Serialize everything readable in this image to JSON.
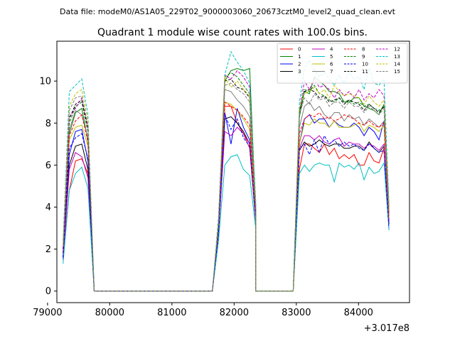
{
  "chart_data": {
    "type": "line",
    "suptitle": "Data file: modeM0/AS1A05_229T02_9000003060_20673cztM0_level2_quad_clean.evt",
    "title": "Quadrant 1 module wise count rates with 100.0s bins.",
    "xlabel": "",
    "ylabel": "",
    "x_offset_label": "+3.017e8",
    "xlim": [
      79150,
      84820
    ],
    "ylim": [
      -0.55,
      11.9
    ],
    "xticks": [
      79000,
      80000,
      81000,
      82000,
      83000,
      84000
    ],
    "yticks": [
      0,
      2,
      4,
      6,
      8,
      10
    ],
    "legend": {
      "placement": "top-right",
      "ncol": 4
    },
    "series": [
      {
        "name": "0",
        "color": "#ff0000",
        "dash": "solid",
        "seg1": [
          1.5,
          4.8,
          6.2,
          6.3,
          5.6
        ],
        "seg2": [
          2.8,
          8.8,
          8.8,
          8.0,
          7.5,
          6.8,
          3.2
        ],
        "seg3": [
          5.8,
          7.0,
          7.0,
          6.8,
          6.6,
          7.0,
          6.5,
          6.8,
          6.3,
          6.5,
          6.3,
          6.5,
          6.0,
          6.0,
          6.6,
          6.2,
          6.1,
          6.8,
          3.4
        ]
      },
      {
        "name": "1",
        "color": "#008000",
        "dash": "solid",
        "seg1": [
          1.8,
          7.5,
          8.5,
          8.7,
          7.2
        ],
        "seg2": [
          3.0,
          10.0,
          10.5,
          10.6,
          10.5,
          10.6,
          3.6
        ],
        "seg3": [
          8.3,
          9.5,
          9.4,
          10.2,
          10.0,
          9.8,
          9.5,
          9.5,
          9.4,
          9.0,
          9.0,
          9.2,
          9.2,
          8.8,
          8.7,
          8.6,
          8.4,
          8.9,
          3.9
        ]
      },
      {
        "name": "2",
        "color": "#0000ff",
        "dash": "solid",
        "seg1": [
          1.6,
          6.5,
          7.6,
          7.7,
          6.2
        ],
        "seg2": [
          2.9,
          8.5,
          7.0,
          8.7,
          7.8,
          7.2,
          3.3
        ],
        "seg3": [
          7.0,
          8.2,
          8.4,
          8.0,
          8.2,
          8.2,
          7.8,
          8.1,
          7.9,
          7.8,
          7.8,
          8.0,
          7.8,
          7.4,
          7.8,
          7.6,
          7.2,
          8.1,
          3.5
        ]
      },
      {
        "name": "3",
        "color": "#000000",
        "dash": "solid",
        "seg1": [
          1.6,
          6.0,
          6.9,
          7.0,
          5.8
        ],
        "seg2": [
          2.8,
          8.2,
          8.3,
          8.0,
          7.6,
          7.0,
          3.3
        ],
        "seg3": [
          6.7,
          7.1,
          6.9,
          7.0,
          7.2,
          7.0,
          6.9,
          7.0,
          7.0,
          6.8,
          6.8,
          6.9,
          6.9,
          6.7,
          7.1,
          6.8,
          6.6,
          6.9,
          3.2
        ]
      },
      {
        "name": "4",
        "color": "#bf00bf",
        "dash": "solid",
        "seg1": [
          1.5,
          5.8,
          6.6,
          6.4,
          5.4
        ],
        "seg2": [
          2.7,
          7.6,
          7.4,
          7.8,
          7.5,
          7.0,
          3.2
        ],
        "seg3": [
          6.8,
          7.4,
          7.4,
          7.2,
          7.4,
          7.1,
          7.0,
          7.2,
          7.3,
          6.9,
          7.1,
          7.0,
          7.0,
          6.8,
          7.0,
          6.9,
          6.7,
          7.0,
          3.3
        ]
      },
      {
        "name": "5",
        "color": "#00bfbf",
        "dash": "solid",
        "seg1": [
          1.3,
          4.8,
          5.6,
          5.9,
          4.9
        ],
        "seg2": [
          2.4,
          6.0,
          6.4,
          6.5,
          5.8,
          5.5,
          2.9
        ],
        "seg3": [
          5.6,
          6.0,
          5.7,
          6.0,
          6.1,
          6.0,
          6.0,
          5.2,
          6.1,
          5.9,
          6.0,
          5.8,
          6.1,
          5.3,
          5.9,
          5.6,
          5.7,
          6.1,
          2.9
        ]
      },
      {
        "name": "6",
        "color": "#bfbf00",
        "dash": "solid",
        "seg1": [
          1.8,
          7.2,
          7.8,
          7.9,
          6.9
        ],
        "seg2": [
          2.9,
          9.0,
          8.9,
          8.6,
          8.2,
          7.7,
          3.4
        ],
        "seg3": [
          7.0,
          8.0,
          7.9,
          8.2,
          8.0,
          8.0,
          7.8,
          8.1,
          7.8,
          7.8,
          7.8,
          7.9,
          8.0,
          7.6,
          7.9,
          7.8,
          7.6,
          7.9,
          3.5
        ]
      },
      {
        "name": "7",
        "color": "#7f7f7f",
        "dash": "solid",
        "seg1": [
          1.9,
          7.7,
          8.6,
          8.4,
          7.3
        ],
        "seg2": [
          3.1,
          9.6,
          9.5,
          9.1,
          8.8,
          8.3,
          3.6
        ],
        "seg3": [
          7.8,
          8.8,
          9.0,
          8.6,
          8.8,
          8.4,
          8.2,
          8.5,
          8.5,
          8.1,
          8.4,
          8.2,
          8.3,
          7.9,
          8.2,
          8.0,
          7.8,
          8.1,
          3.6
        ]
      },
      {
        "name": "8",
        "color": "#ff0000",
        "dash": "dashed",
        "seg1": [
          1.8,
          7.4,
          8.1,
          8.4,
          7.1
        ],
        "seg2": [
          3.0,
          9.0,
          8.8,
          8.6,
          8.3,
          7.9,
          3.5
        ],
        "seg3": [
          7.5,
          8.2,
          8.4,
          8.3,
          8.5,
          8.2,
          8.3,
          8.1,
          8.2,
          8.4,
          8.3,
          8.2,
          8.0,
          7.9,
          8.1,
          7.9,
          7.8,
          8.0,
          3.6
        ]
      },
      {
        "name": "9",
        "color": "#008000",
        "dash": "dashed",
        "seg1": [
          2.0,
          8.0,
          8.8,
          9.0,
          7.6
        ],
        "seg2": [
          3.2,
          10.2,
          10.4,
          10.2,
          9.8,
          9.4,
          3.8
        ],
        "seg3": [
          8.6,
          9.6,
          9.5,
          9.8,
          9.4,
          9.3,
          9.1,
          9.0,
          9.2,
          9.0,
          9.1,
          8.9,
          9.0,
          8.8,
          8.9,
          8.7,
          8.6,
          8.8,
          3.9
        ]
      },
      {
        "name": "10",
        "color": "#0000ff",
        "dash": "dashed",
        "seg1": [
          1.6,
          6.8,
          7.3,
          7.5,
          6.3
        ],
        "seg2": [
          2.8,
          8.4,
          7.7,
          8.2,
          7.3,
          6.9,
          3.3
        ],
        "seg3": [
          6.8,
          7.0,
          6.5,
          7.2,
          6.6,
          7.4,
          7.0,
          7.2,
          6.9,
          7.1,
          6.9,
          7.0,
          6.8,
          6.7,
          7.0,
          6.8,
          6.6,
          6.7,
          3.0
        ]
      },
      {
        "name": "11",
        "color": "#000000",
        "dash": "dashed",
        "seg1": [
          2.0,
          8.2,
          8.9,
          9.1,
          7.7
        ],
        "seg2": [
          3.3,
          10.0,
          10.1,
          9.7,
          9.6,
          9.2,
          3.8
        ],
        "seg3": [
          8.5,
          9.5,
          9.6,
          9.5,
          9.2,
          9.3,
          9.0,
          9.1,
          9.2,
          8.9,
          9.1,
          9.0,
          8.9,
          8.6,
          8.9,
          8.7,
          8.5,
          8.8,
          3.8
        ]
      },
      {
        "name": "12",
        "color": "#bf00bf",
        "dash": "dashed",
        "seg1": [
          2.0,
          8.3,
          8.7,
          9.2,
          7.8
        ],
        "seg2": [
          3.3,
          10.3,
          10.1,
          10.5,
          10.2,
          9.7,
          3.9
        ],
        "seg3": [
          8.6,
          10.0,
          9.6,
          10.1,
          9.7,
          9.8,
          9.6,
          9.2,
          9.6,
          9.3,
          9.5,
          9.2,
          9.6,
          9.1,
          9.4,
          9.2,
          9.6,
          9.3,
          3.9
        ]
      },
      {
        "name": "13",
        "color": "#00bfbf",
        "dash": "dashed",
        "seg1": [
          2.4,
          9.5,
          9.8,
          10.1,
          8.4
        ],
        "seg2": [
          3.6,
          10.3,
          11.4,
          10.9,
          10.5,
          9.9,
          4.2
        ],
        "seg3": [
          9.0,
          10.6,
          11.0,
          10.5,
          10.2,
          10.4,
          10.1,
          9.8,
          10.3,
          9.9,
          10.4,
          10.1,
          10.2,
          9.6,
          10.6,
          9.9,
          9.8,
          10.1,
          4.2
        ]
      },
      {
        "name": "14",
        "color": "#bfbf00",
        "dash": "dashed",
        "seg1": [
          2.2,
          8.8,
          9.4,
          9.6,
          8.1
        ],
        "seg2": [
          3.4,
          10.2,
          9.7,
          10.0,
          9.6,
          9.3,
          3.9
        ],
        "seg3": [
          8.7,
          9.4,
          9.5,
          9.7,
          9.4,
          9.6,
          9.2,
          9.8,
          9.5,
          9.3,
          9.4,
          9.3,
          9.2,
          8.9,
          9.3,
          9.0,
          8.8,
          9.1,
          3.9
        ]
      },
      {
        "name": "15",
        "color": "#7f7f7f",
        "dash": "dashed",
        "seg1": [
          2.1,
          8.6,
          9.2,
          9.3,
          7.9
        ],
        "seg2": [
          3.3,
          9.8,
          9.9,
          9.6,
          9.4,
          9.0,
          3.8
        ],
        "seg3": [
          8.4,
          9.2,
          8.9,
          9.4,
          9.1,
          9.2,
          8.8,
          9.0,
          9.0,
          8.7,
          9.0,
          8.8,
          8.8,
          8.5,
          8.8,
          8.6,
          8.4,
          8.7,
          3.8
        ]
      }
    ]
  }
}
